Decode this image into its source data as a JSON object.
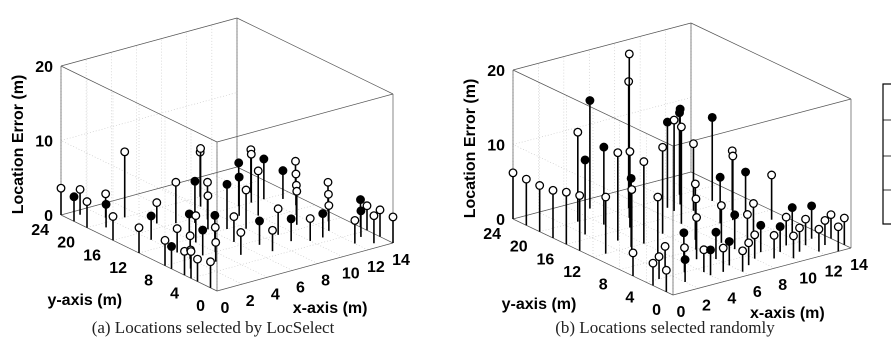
{
  "chart_data": [
    {
      "type": "scatter3d-stem",
      "caption": "(a) Locations selected by LocSelect",
      "xlabel": "x-axis (m)",
      "ylabel": "y-axis (m)",
      "zlabel": "Location Error (m)",
      "xlim": [
        0,
        14
      ],
      "ylim": [
        0,
        24
      ],
      "zlim": [
        0,
        20
      ],
      "xticks": [
        "0",
        "2",
        "4",
        "6",
        "8",
        "10",
        "12",
        "14"
      ],
      "yticks": [
        "0",
        "4",
        "8",
        "12",
        "16",
        "20",
        "24"
      ],
      "zticks": [
        "0",
        "10",
        "20"
      ],
      "grid": true,
      "points_open": [
        [
          0,
          1,
          3.5
        ],
        [
          0,
          4,
          3.6
        ],
        [
          0,
          8,
          3.4
        ],
        [
          0,
          12,
          3.4
        ],
        [
          0,
          16,
          3.2
        ],
        [
          0,
          20,
          3.5
        ],
        [
          0,
          24,
          3.6
        ],
        [
          1,
          23,
          3.4
        ],
        [
          2,
          21,
          3.2
        ],
        [
          3,
          20,
          8.8
        ],
        [
          4,
          17,
          2.8
        ],
        [
          5,
          16,
          5.5
        ],
        [
          2,
          10,
          3.2
        ],
        [
          4,
          11,
          3.6
        ],
        [
          6,
          13,
          4.5
        ],
        [
          7,
          15,
          5.0
        ],
        [
          8,
          18,
          7.8
        ],
        [
          9,
          20,
          6.0
        ],
        [
          6,
          9,
          3.4
        ],
        [
          8,
          11,
          5.2
        ],
        [
          10,
          13,
          6.0
        ],
        [
          11,
          16,
          6.5
        ],
        [
          12,
          18,
          5.8
        ],
        [
          9,
          8,
          3.5
        ],
        [
          11,
          9,
          4.5
        ],
        [
          12,
          11,
          4.0
        ],
        [
          13,
          13,
          4.2
        ],
        [
          14,
          15,
          4.6
        ],
        [
          12,
          6,
          3.4
        ],
        [
          13,
          8,
          3.6
        ],
        [
          14,
          10,
          3.9
        ],
        [
          14,
          4,
          3.3
        ],
        [
          14,
          2,
          3.6
        ],
        [
          10,
          5,
          3.0
        ],
        [
          7,
          5,
          2.8
        ],
        [
          5,
          6,
          3.0
        ],
        [
          3,
          6,
          2.6
        ],
        [
          1,
          6,
          2.5
        ],
        [
          2,
          8,
          3.1
        ],
        [
          4,
          8,
          3.3
        ],
        [
          0,
          5,
          3.2
        ],
        [
          0,
          3,
          3.0
        ],
        [
          13,
          1,
          3.7
        ],
        [
          14,
          0,
          3.5
        ],
        [
          12,
          2,
          3.1
        ]
      ],
      "points_filled": [
        [
          0,
          22,
          3.3
        ],
        [
          1,
          19,
          3.1
        ],
        [
          2,
          14,
          3.2
        ],
        [
          4,
          12,
          3.4
        ],
        [
          6,
          15,
          5.6
        ],
        [
          5,
          10,
          3.6
        ],
        [
          7,
          12,
          6.0
        ],
        [
          9,
          14,
          5.2
        ],
        [
          10,
          16,
          5.8
        ],
        [
          12,
          16,
          5.4
        ],
        [
          13,
          15,
          3.8
        ],
        [
          0,
          7,
          3.0
        ],
        [
          3,
          8,
          3.4
        ],
        [
          7,
          7,
          3.2
        ],
        [
          9,
          6,
          3.0
        ],
        [
          11,
          5,
          3.2
        ],
        [
          13,
          3,
          3.5
        ],
        [
          14,
          5,
          3.7
        ]
      ]
    },
    {
      "type": "scatter3d-stem",
      "caption": "(b) Locations selected randomly",
      "xlabel": "x-axis (m)",
      "ylabel": "y-axis (m)",
      "zlabel": "Location Error (m)",
      "xlim": [
        0,
        14
      ],
      "ylim": [
        0,
        24
      ],
      "zlim": [
        0,
        20
      ],
      "xticks": [
        "0",
        "2",
        "4",
        "6",
        "8",
        "10",
        "12",
        "14"
      ],
      "yticks": [
        "0",
        "4",
        "8",
        "12",
        "16",
        "20",
        "24"
      ],
      "zticks": [
        "0",
        "10",
        "20"
      ],
      "grid": true,
      "points_open": [
        [
          0,
          24,
          6.2
        ],
        [
          0,
          22,
          6.2
        ],
        [
          0,
          20,
          6.2
        ],
        [
          0,
          18,
          6.4
        ],
        [
          0,
          16,
          7.0
        ],
        [
          0,
          14,
          7.4
        ],
        [
          1,
          12,
          7.6
        ],
        [
          2,
          10,
          9.0
        ],
        [
          3,
          8,
          8.4
        ],
        [
          3,
          14,
          11.8
        ],
        [
          3,
          20,
          12.0
        ],
        [
          5,
          16,
          10.2
        ],
        [
          6,
          18,
          22.0
        ],
        [
          7,
          20,
          17.0
        ],
        [
          4,
          12,
          11.0
        ],
        [
          6,
          13,
          11.6
        ],
        [
          8,
          14,
          13.0
        ],
        [
          9,
          17,
          12.2
        ],
        [
          10,
          16,
          9.0
        ],
        [
          11,
          12,
          8.6
        ],
        [
          12,
          14,
          8.0
        ],
        [
          13,
          10,
          6.0
        ],
        [
          5,
          6,
          5.6
        ],
        [
          6,
          8,
          6.8
        ],
        [
          7,
          10,
          7.5
        ],
        [
          8,
          8,
          5.0
        ],
        [
          9,
          6,
          4.2
        ],
        [
          10,
          7,
          4.8
        ],
        [
          11,
          4,
          3.8
        ],
        [
          12,
          3,
          3.5
        ],
        [
          13,
          2,
          3.3
        ],
        [
          14,
          1,
          3.6
        ],
        [
          14,
          3,
          3.2
        ],
        [
          1,
          4,
          3.0
        ],
        [
          2,
          5,
          3.5
        ],
        [
          3,
          4,
          3.3
        ],
        [
          4,
          3,
          3.0
        ],
        [
          5,
          2,
          3.2
        ],
        [
          6,
          1,
          2.8
        ],
        [
          7,
          2,
          3.0
        ],
        [
          0,
          6,
          3.1
        ],
        [
          0,
          3,
          3.0
        ],
        [
          8,
          3,
          3.2
        ],
        [
          9,
          2,
          3.1
        ],
        [
          10,
          1,
          3.0
        ],
        [
          11,
          2,
          3.2
        ],
        [
          12,
          1,
          3.0
        ],
        [
          13,
          0,
          3.3
        ],
        [
          0,
          1,
          2.9
        ]
      ],
      "points_filled": [
        [
          5,
          22,
          14.5
        ],
        [
          9,
          18,
          11.5
        ],
        [
          10,
          18,
          12.8
        ],
        [
          11,
          20,
          11.0
        ],
        [
          12,
          17,
          11.2
        ],
        [
          2,
          17,
          10.0
        ],
        [
          4,
          18,
          10.4
        ],
        [
          3,
          12,
          9.2
        ],
        [
          10,
          12,
          6.2
        ],
        [
          12,
          12,
          6.0
        ],
        [
          4,
          6,
          4.0
        ],
        [
          6,
          5,
          3.6
        ],
        [
          8,
          6,
          4.6
        ],
        [
          9,
          4,
          3.6
        ],
        [
          10,
          3,
          3.4
        ],
        [
          12,
          5,
          4.2
        ],
        [
          13,
          4,
          4.4
        ],
        [
          2,
          2,
          3.0
        ],
        [
          4,
          2,
          3.4
        ],
        [
          6,
          3,
          3.2
        ]
      ]
    }
  ]
}
